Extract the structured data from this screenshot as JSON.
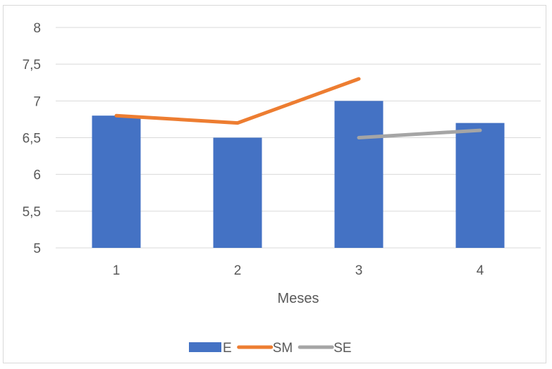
{
  "chart_data": {
    "type": "bar",
    "categories": [
      "1",
      "2",
      "3",
      "4"
    ],
    "xlabel": "Meses",
    "ylabel": "",
    "title": "",
    "ylim": [
      5,
      8
    ],
    "yticks": [
      "5",
      "5,5",
      "6",
      "6,5",
      "7",
      "7,5",
      "8"
    ],
    "ytick_values": [
      5,
      5.5,
      6,
      6.5,
      7,
      7.5,
      8
    ],
    "grid": true,
    "legend_position": "bottom",
    "series": [
      {
        "name": "E",
        "kind": "bar",
        "color": "#4472c4",
        "values": [
          6.8,
          6.5,
          7.0,
          6.7
        ]
      },
      {
        "name": "SM",
        "kind": "line",
        "color": "#ed7d31",
        "values": [
          6.8,
          6.7,
          7.3,
          null
        ]
      },
      {
        "name": "SE",
        "kind": "line",
        "color": "#a5a5a5",
        "values": [
          null,
          null,
          6.5,
          6.6
        ]
      }
    ]
  }
}
